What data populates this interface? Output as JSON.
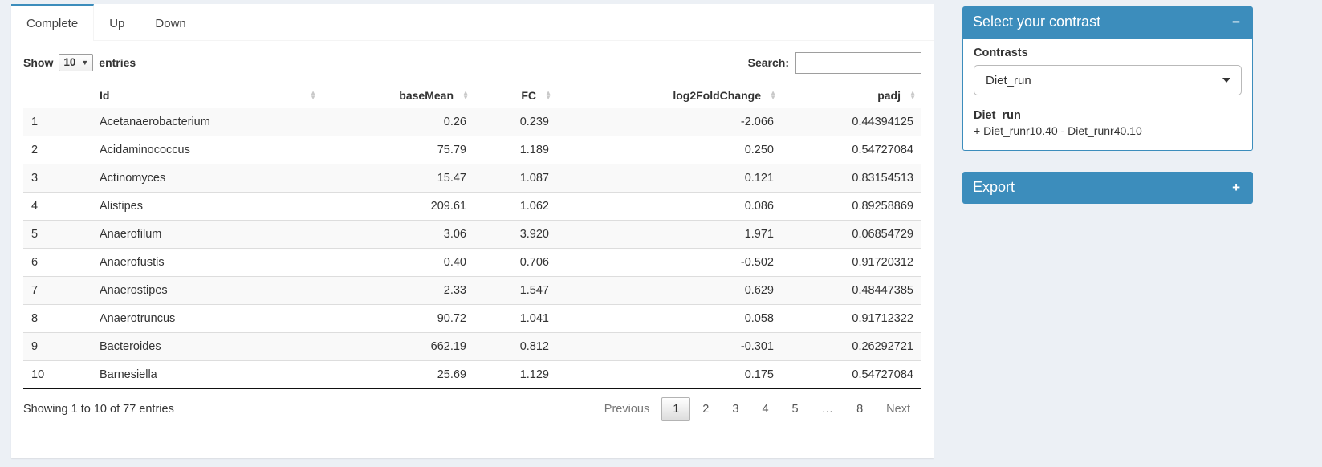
{
  "colors": {
    "accent": "#3c8dbc",
    "page_bg": "#ecf0f5",
    "stripe_bg": "#f9f9f9"
  },
  "tabs": {
    "items": [
      {
        "label": "Complete",
        "active": true
      },
      {
        "label": "Up",
        "active": false
      },
      {
        "label": "Down",
        "active": false
      }
    ]
  },
  "controls": {
    "show_label": "Show",
    "page_length": "10",
    "entries_label": "entries",
    "search_label": "Search:",
    "search_value": ""
  },
  "table": {
    "columns": [
      {
        "label": "",
        "align": "left",
        "sortable": false
      },
      {
        "label": "Id",
        "align": "left",
        "sortable": true
      },
      {
        "label": "baseMean",
        "align": "right",
        "sortable": true
      },
      {
        "label": "FC",
        "align": "right",
        "sortable": true
      },
      {
        "label": "log2FoldChange",
        "align": "right",
        "sortable": true
      },
      {
        "label": "padj",
        "align": "right",
        "sortable": true
      }
    ],
    "rows": [
      [
        "1",
        "Acetanaerobacterium",
        "0.26",
        "0.239",
        "-2.066",
        "0.44394125"
      ],
      [
        "2",
        "Acidaminococcus",
        "75.79",
        "1.189",
        "0.250",
        "0.54727084"
      ],
      [
        "3",
        "Actinomyces",
        "15.47",
        "1.087",
        "0.121",
        "0.83154513"
      ],
      [
        "4",
        "Alistipes",
        "209.61",
        "1.062",
        "0.086",
        "0.89258869"
      ],
      [
        "5",
        "Anaerofilum",
        "3.06",
        "3.920",
        "1.971",
        "0.06854729"
      ],
      [
        "6",
        "Anaerofustis",
        "0.40",
        "0.706",
        "-0.502",
        "0.91720312"
      ],
      [
        "7",
        "Anaerostipes",
        "2.33",
        "1.547",
        "0.629",
        "0.48447385"
      ],
      [
        "8",
        "Anaerotruncus",
        "90.72",
        "1.041",
        "0.058",
        "0.91712322"
      ],
      [
        "9",
        "Bacteroides",
        "662.19",
        "0.812",
        "-0.301",
        "0.26292721"
      ],
      [
        "10",
        "Barnesiella",
        "25.69",
        "1.129",
        "0.175",
        "0.54727084"
      ]
    ]
  },
  "footer": {
    "info": "Showing 1 to 10 of 77 entries",
    "previous_label": "Previous",
    "pages": [
      "1",
      "2",
      "3",
      "4",
      "5",
      "…",
      "8"
    ],
    "active_page": "1",
    "next_label": "Next"
  },
  "contrast_box": {
    "title": "Select your contrast",
    "collapse_icon": "−",
    "contrasts_label": "Contrasts",
    "selected_value": "Diet_run",
    "detail_title": "Diet_run",
    "detail_formula": "+ Diet_runr10.40 - Diet_runr40.10"
  },
  "export_box": {
    "title": "Export",
    "expand_icon": "+"
  }
}
